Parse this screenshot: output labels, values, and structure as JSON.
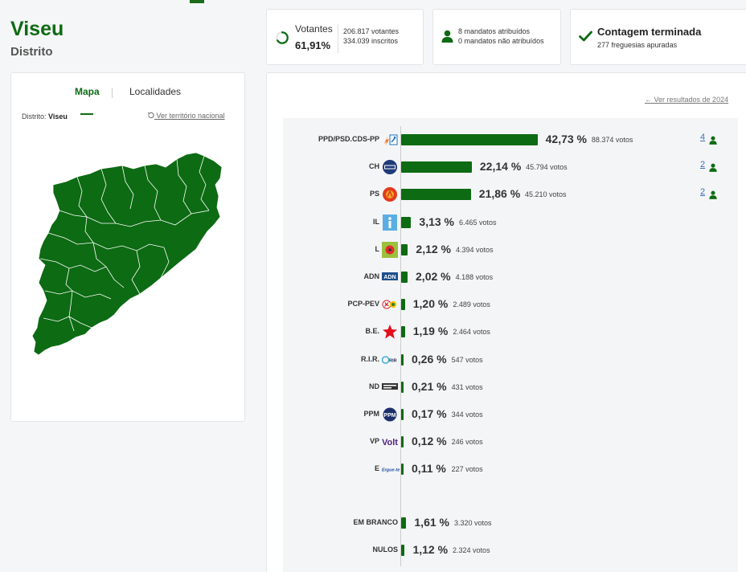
{
  "header": {
    "title": "Viseu",
    "subtitle": "Distrito"
  },
  "stats": {
    "votantes": {
      "label": "Votantes",
      "pct": "61,91%",
      "votantes": "206.817 votantes",
      "inscritos": "334.039 inscritos"
    },
    "mandatos": {
      "atribuidos": "8 mandatos atribuídos",
      "nao_atribuidos": "0 mandatos não atribuídos"
    },
    "contagem": {
      "title": "Contagem terminada",
      "sub": "277 freguesias apuradas"
    }
  },
  "map": {
    "tabs": [
      "Mapa",
      "Localidades"
    ],
    "distrito_label": "Distrito:",
    "distrito_value": "Viseu",
    "ver_territorio": "Ver território nacional",
    "fill_color": "#0d6b13"
  },
  "results": {
    "ver_resultados": "Ver resultados de 2024",
    "accent": "#0d6b13",
    "seat_link_color": "#3b6fb6",
    "parties": [
      {
        "name": "PPD/PSD.CDS-PP",
        "pct": "42,73 %",
        "share": 42.73,
        "votes": "88.374 votos",
        "seats": "4",
        "logo": "psd-cds-logo"
      },
      {
        "name": "CH",
        "pct": "22,14 %",
        "share": 22.14,
        "votes": "45.794 votos",
        "seats": "2",
        "logo": "chega-logo"
      },
      {
        "name": "PS",
        "pct": "21,86 %",
        "share": 21.86,
        "votes": "45.210 votos",
        "seats": "2",
        "logo": "ps-logo"
      },
      {
        "name": "IL",
        "pct": "3,13 %",
        "share": 3.13,
        "votes": "6.465 votos",
        "logo": "il-logo"
      },
      {
        "name": "L",
        "pct": "2,12 %",
        "share": 2.12,
        "votes": "4.394 votos",
        "logo": "livre-logo"
      },
      {
        "name": "ADN",
        "pct": "2,02 %",
        "share": 2.02,
        "votes": "4.188 votos",
        "logo": "adn-logo"
      },
      {
        "name": "PCP-PEV",
        "pct": "1,20 %",
        "share": 1.2,
        "votes": "2.489 votos",
        "logo": "cdu-logo"
      },
      {
        "name": "B.E.",
        "pct": "1,19 %",
        "share": 1.19,
        "votes": "2.464 votos",
        "logo": "be-logo"
      },
      {
        "name": "R.I.R.",
        "pct": "0,26 %",
        "share": 0.26,
        "votes": "547 votos",
        "logo": "rir-logo"
      },
      {
        "name": "ND",
        "pct": "0,21 %",
        "share": 0.21,
        "votes": "431 votos",
        "logo": "nd-logo"
      },
      {
        "name": "PPM",
        "pct": "0,17 %",
        "share": 0.17,
        "votes": "344 votos",
        "logo": "ppm-logo"
      },
      {
        "name": "VP",
        "pct": "0,12 %",
        "share": 0.12,
        "votes": "246 votos",
        "logo": "volt-logo",
        "logo_text": "Volt"
      },
      {
        "name": "E",
        "pct": "0,11 %",
        "share": 0.11,
        "votes": "227 votos",
        "logo": "ergue-te-logo",
        "logo_text": "Ergue-te"
      }
    ],
    "others": [
      {
        "name": "EM BRANCO",
        "pct": "1,61 %",
        "share": 1.61,
        "votes": "3.320 votos"
      },
      {
        "name": "NULOS",
        "pct": "1,12 %",
        "share": 1.12,
        "votes": "2.324 votos"
      }
    ]
  }
}
